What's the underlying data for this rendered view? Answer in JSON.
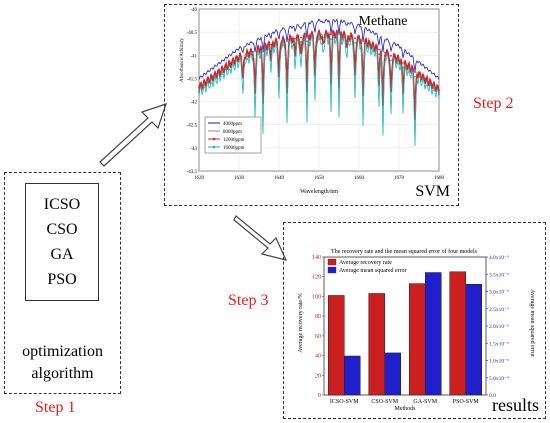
{
  "step1": {
    "label": "Step 1",
    "algorithms": [
      "ICSO",
      "CSO",
      "GA",
      "PSO"
    ],
    "caption_line1": "optimization",
    "caption_line2": "algorithm"
  },
  "step2": {
    "label": "Step 2",
    "box_caption": "SVM",
    "chart": {
      "title": "Methane",
      "xlabel": "Wavelength/nm",
      "ylabel": "Absorbance/Arbitrary",
      "xticks": [
        "1620",
        "1630",
        "1640",
        "1650",
        "1660",
        "1670",
        "1680"
      ],
      "yticks": [
        "-40",
        "-40.5",
        "-41",
        "-41.5",
        "-42",
        "-42.5",
        "-43",
        "-43.5"
      ],
      "legend": [
        "4000ppm",
        "8000ppm",
        "12000ppm",
        "16000ppm"
      ]
    }
  },
  "step3": {
    "label": "Step 3",
    "box_caption": "results"
  },
  "colors": {
    "red": "#e02020",
    "blue": "#1a1ad0",
    "teal": "#1ab5b5",
    "bar_red": "#cc1f1f",
    "bar_blue": "#1f1fcc"
  },
  "chart_data": [
    {
      "type": "line",
      "title": "Methane",
      "xlabel": "Wavelength/nm",
      "ylabel": "Absorbance/Arbitrary",
      "xlim": [
        1620,
        1680
      ],
      "ylim": [
        -43.5,
        -40
      ],
      "legend_position": "bottom-left",
      "series": [
        {
          "name": "4000ppm",
          "color": "#1a1ad0",
          "x": [
            1620,
            1630,
            1640,
            1650,
            1655,
            1660,
            1670,
            1680
          ],
          "y": [
            -41.5,
            -40.85,
            -40.45,
            -40.25,
            -40.25,
            -40.35,
            -40.8,
            -41.5
          ]
        },
        {
          "name": "8000ppm",
          "color": "#8c8c8c",
          "x": [
            1620,
            1630,
            1640,
            1650,
            1655,
            1660,
            1670,
            1680
          ],
          "y": [
            -41.65,
            -41.0,
            -40.65,
            -40.5,
            -40.5,
            -40.6,
            -41.05,
            -41.7
          ]
        },
        {
          "name": "12000ppm",
          "color": "#e02020",
          "x": [
            1620,
            1630,
            1640,
            1650,
            1655,
            1660,
            1670,
            1680
          ],
          "y": [
            -41.7,
            -41.05,
            -40.7,
            -40.55,
            -40.55,
            -40.65,
            -41.1,
            -41.75
          ]
        },
        {
          "name": "16000ppm",
          "color": "#1ab5b5",
          "x": [
            1620,
            1630,
            1640,
            1650,
            1655,
            1660,
            1670,
            1680
          ],
          "y": [
            -41.8,
            -41.15,
            -40.8,
            -40.65,
            -40.65,
            -40.75,
            -41.2,
            -41.85
          ]
        }
      ]
    },
    {
      "type": "bar",
      "title": "The recovery rate and the mean squared error of four models",
      "xlabel": "Methods",
      "ylabel": "Average recovery rate/%",
      "ylabel_right": "Average mean squared error",
      "categories": [
        "ICSO-SVM",
        "CSO-SVM",
        "GA-SVM",
        "PSO-SVM"
      ],
      "ylim": [
        0,
        140
      ],
      "ylim_right": [
        0,
        0.004
      ],
      "yticks": [
        "0",
        "20",
        "40",
        "60",
        "80",
        "100",
        "120",
        "140"
      ],
      "yticks_right": [
        "0.0",
        "5.0x10⁻⁴",
        "1.0x10⁻³",
        "1.5x10⁻³",
        "2.0x10⁻³",
        "2.5x10⁻³",
        "3.0x10⁻³",
        "3.5x10⁻³",
        "4.0x10⁻³"
      ],
      "legend_position": "top-left",
      "series": [
        {
          "name": "Average recovery rate",
          "axis": "left",
          "color": "#cc1f1f",
          "values": [
            101,
            103,
            113,
            125
          ]
        },
        {
          "name": "Average mean squared error",
          "axis": "right",
          "color": "#1f1fcc",
          "values": [
            0.00113,
            0.00122,
            0.00355,
            0.00321
          ]
        }
      ]
    }
  ]
}
